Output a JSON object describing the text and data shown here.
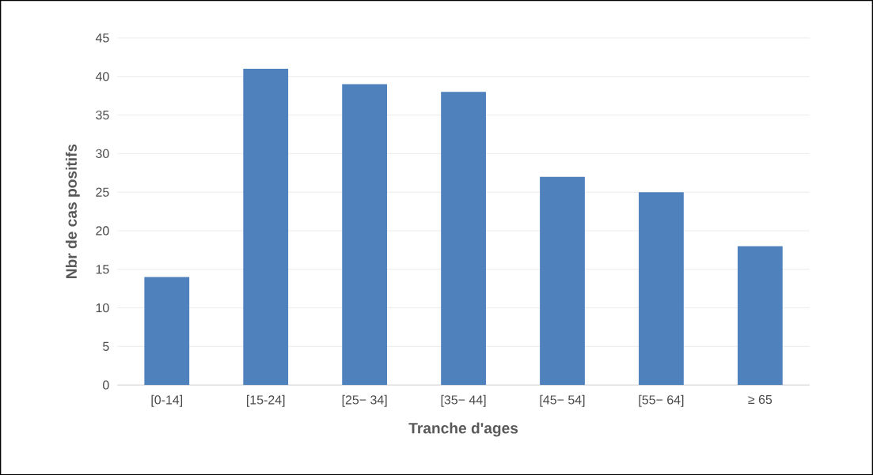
{
  "chart_data": {
    "type": "bar",
    "xlabel": "Tranche d'ages",
    "ylabel": "Nbr de cas positifs",
    "categories": [
      "[0-14]",
      "[15-24]",
      "[25− 34]",
      "[35− 44]",
      "[45− 54]",
      "[55− 64]",
      "≥ 65"
    ],
    "values": [
      14,
      41,
      39,
      38,
      27,
      25,
      18
    ],
    "color": "#4f81bd",
    "ylim": [
      0,
      45
    ],
    "yticks": [
      0,
      5,
      10,
      15,
      20,
      25,
      30,
      35,
      40,
      45
    ],
    "grid": "y"
  }
}
